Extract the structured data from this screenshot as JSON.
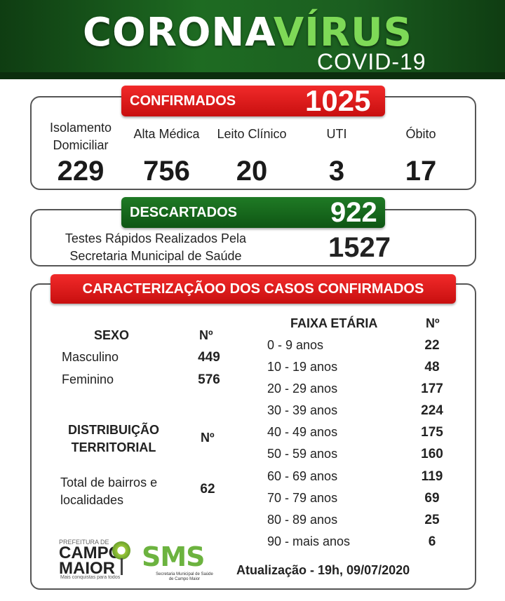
{
  "header": {
    "title_a": "CORONA",
    "title_b": "VÍRUS",
    "subtitle": "COVID-19"
  },
  "confirmados": {
    "label": "CONFIRMADOS",
    "total": "1025",
    "categories": [
      {
        "label": "Isolamento Domiciliar",
        "value": "229"
      },
      {
        "label": "Alta Médica",
        "value": "756"
      },
      {
        "label": "Leito Clínico",
        "value": "20"
      },
      {
        "label": "UTI",
        "value": "3"
      },
      {
        "label": "Óbito",
        "value": "17"
      }
    ]
  },
  "descartados": {
    "label": "DESCARTADOS",
    "total": "922",
    "testes_label": "Testes Rápidos Realizados Pela Secretaria Municipal de Saúde",
    "testes_value": "1527"
  },
  "caracterizacao": {
    "label": "CARACTERIZAÇÃOO DOS CASOS CONFIRMADOS",
    "sexo": {
      "header": "SEXO",
      "num_header": "Nº",
      "rows": [
        {
          "label": "Masculino",
          "value": "449"
        },
        {
          "label": "Feminino",
          "value": "576"
        }
      ]
    },
    "territorial": {
      "header": "DISTRIBUIÇÃO TERRITORIAL",
      "num_header": "Nº",
      "label": "Total de bairros e localidades",
      "value": "62"
    },
    "faixa": {
      "header": "FAIXA ETÁRIA",
      "num_header": "Nº",
      "rows": [
        {
          "label": "0 - 9 anos",
          "value": "22"
        },
        {
          "label": "10 - 19 anos",
          "value": "48"
        },
        {
          "label": "20 - 29 anos",
          "value": "177"
        },
        {
          "label": "30 - 39 anos",
          "value": "224"
        },
        {
          "label": "40 - 49 anos",
          "value": "175"
        },
        {
          "label": "50 - 59 anos",
          "value": "160"
        },
        {
          "label": "60 - 69 anos",
          "value": "119"
        },
        {
          "label": "70 - 79 anos",
          "value": "69"
        },
        {
          "label": "80 - 89 anos",
          "value": "25"
        },
        {
          "label": "90 - mais anos",
          "value": "6"
        }
      ]
    }
  },
  "footer": {
    "logo1_small": "PREFEITURA DE",
    "logo1_big_a": "CAMPO",
    "logo1_big_b": "MAIOR",
    "logo1_tag": "Mais conquistas para todos",
    "logo2_big": "SMS",
    "logo2_tag": "Secretaria Municipal de Saúde de Campo Maior",
    "update": "Atualização - 19h, 09/07/2020"
  }
}
